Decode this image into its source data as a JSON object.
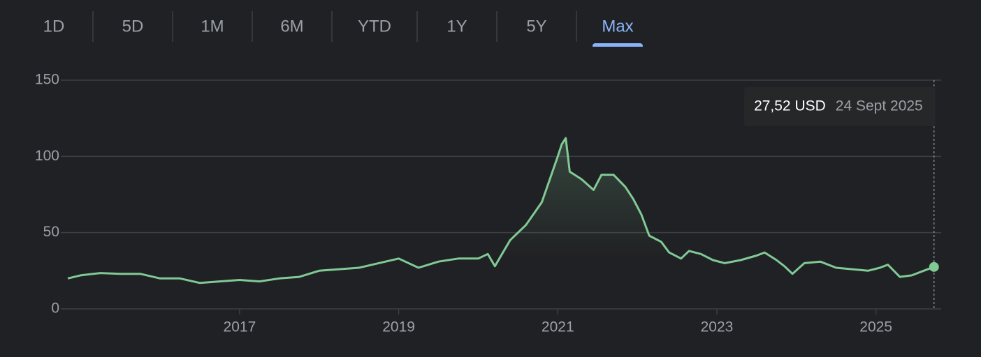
{
  "tabs": [
    "1D",
    "5D",
    "1M",
    "6M",
    "YTD",
    "1Y",
    "5Y",
    "Max"
  ],
  "active_tab": 7,
  "chart_data": {
    "type": "line",
    "x": [
      2014.84,
      2015.0,
      2015.25,
      2015.5,
      2015.75,
      2016.0,
      2016.25,
      2016.5,
      2016.75,
      2017.0,
      2017.25,
      2017.5,
      2017.75,
      2018.0,
      2018.25,
      2018.5,
      2018.75,
      2019.0,
      2019.25,
      2019.5,
      2019.75,
      2020.0,
      2020.12,
      2020.21,
      2020.4,
      2020.6,
      2020.8,
      2020.9,
      2021.0,
      2021.05,
      2021.1,
      2021.15,
      2021.3,
      2021.45,
      2021.55,
      2021.7,
      2021.85,
      2021.95,
      2022.05,
      2022.15,
      2022.3,
      2022.4,
      2022.55,
      2022.65,
      2022.8,
      2022.95,
      2023.1,
      2023.3,
      2023.5,
      2023.6,
      2023.75,
      2023.85,
      2023.95,
      2024.1,
      2024.3,
      2024.5,
      2024.7,
      2024.9,
      2025.05,
      2025.15,
      2025.3,
      2025.45,
      2025.6,
      2025.73
    ],
    "series": [
      {
        "color": "#81c995",
        "values": [
          20,
          22,
          23.5,
          23,
          23,
          20,
          20,
          17,
          18,
          19,
          18,
          20,
          21,
          25,
          26,
          27,
          30,
          33,
          27,
          31,
          33,
          33,
          36,
          28,
          45,
          55,
          70,
          85,
          100,
          108,
          112,
          90,
          85,
          78,
          88,
          88,
          80,
          72,
          62,
          48,
          44,
          37,
          33,
          38,
          36,
          32,
          30,
          32,
          35,
          37,
          32,
          28,
          23,
          30,
          31,
          27,
          26,
          25,
          27,
          29,
          21,
          22,
          25,
          27.52
        ]
      }
    ],
    "xlim": [
      2014.84,
      2025.82
    ],
    "ylim": [
      0,
      150
    ],
    "xticks": [
      2017,
      2019,
      2021,
      2023,
      2025
    ],
    "yticks": [
      0,
      50,
      100,
      150
    ],
    "grid": true,
    "tooltip": {
      "label": "27,52 USD",
      "date": "24 Sept 2025"
    }
  }
}
